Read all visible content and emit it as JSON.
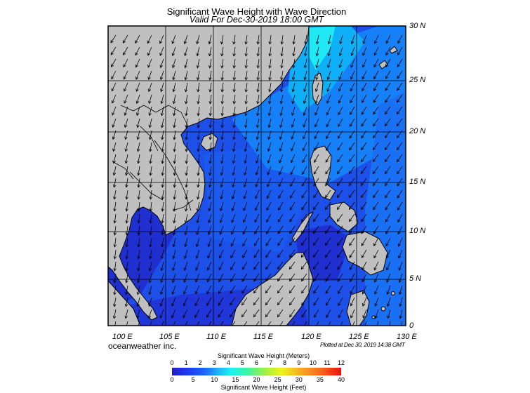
{
  "title": "Significant Wave Height with Wave Direction",
  "subtitle": "Valid For Dec-30-2019 18:00 GMT",
  "lat_labels": [
    "30 N",
    "25 N",
    "20 N",
    "15 N",
    "10 N",
    "5 N",
    "0"
  ],
  "lon_labels": [
    "100 E",
    "105 E",
    "110 E",
    "115 E",
    "120 E",
    "125 E",
    "130 E"
  ],
  "brand": "oceanweather inc.",
  "plotted": "Plotted at Dec 30, 2019 14:38 GMT",
  "colorbar": {
    "title_meters": "Significant Wave Height (Meters)",
    "title_feet": "Significant Wave Height (Feet)",
    "meters_ticks": [
      "0",
      "1",
      "2",
      "3",
      "4",
      "5",
      "6",
      "7",
      "8",
      "9",
      "10",
      "11",
      "12"
    ],
    "feet_ticks": [
      "0",
      "5",
      "10",
      "15",
      "20",
      "25",
      "30",
      "35",
      "40"
    ],
    "colors": [
      "#2020c8",
      "#1a6cf8",
      "#20f0f0",
      "#a0f040",
      "#f0f020",
      "#f86818",
      "#e81010"
    ]
  },
  "map_colors": {
    "land": "#c0c0c0",
    "sea_low": "#2040e0",
    "sea_mid": "#1c60f0",
    "sea_high": "#10b0f8",
    "sea_peak": "#20e8f4",
    "outline": "#000000"
  },
  "extent": {
    "lon_min": 100,
    "lon_max": 130,
    "lat_min": 0,
    "lat_max": 30
  }
}
